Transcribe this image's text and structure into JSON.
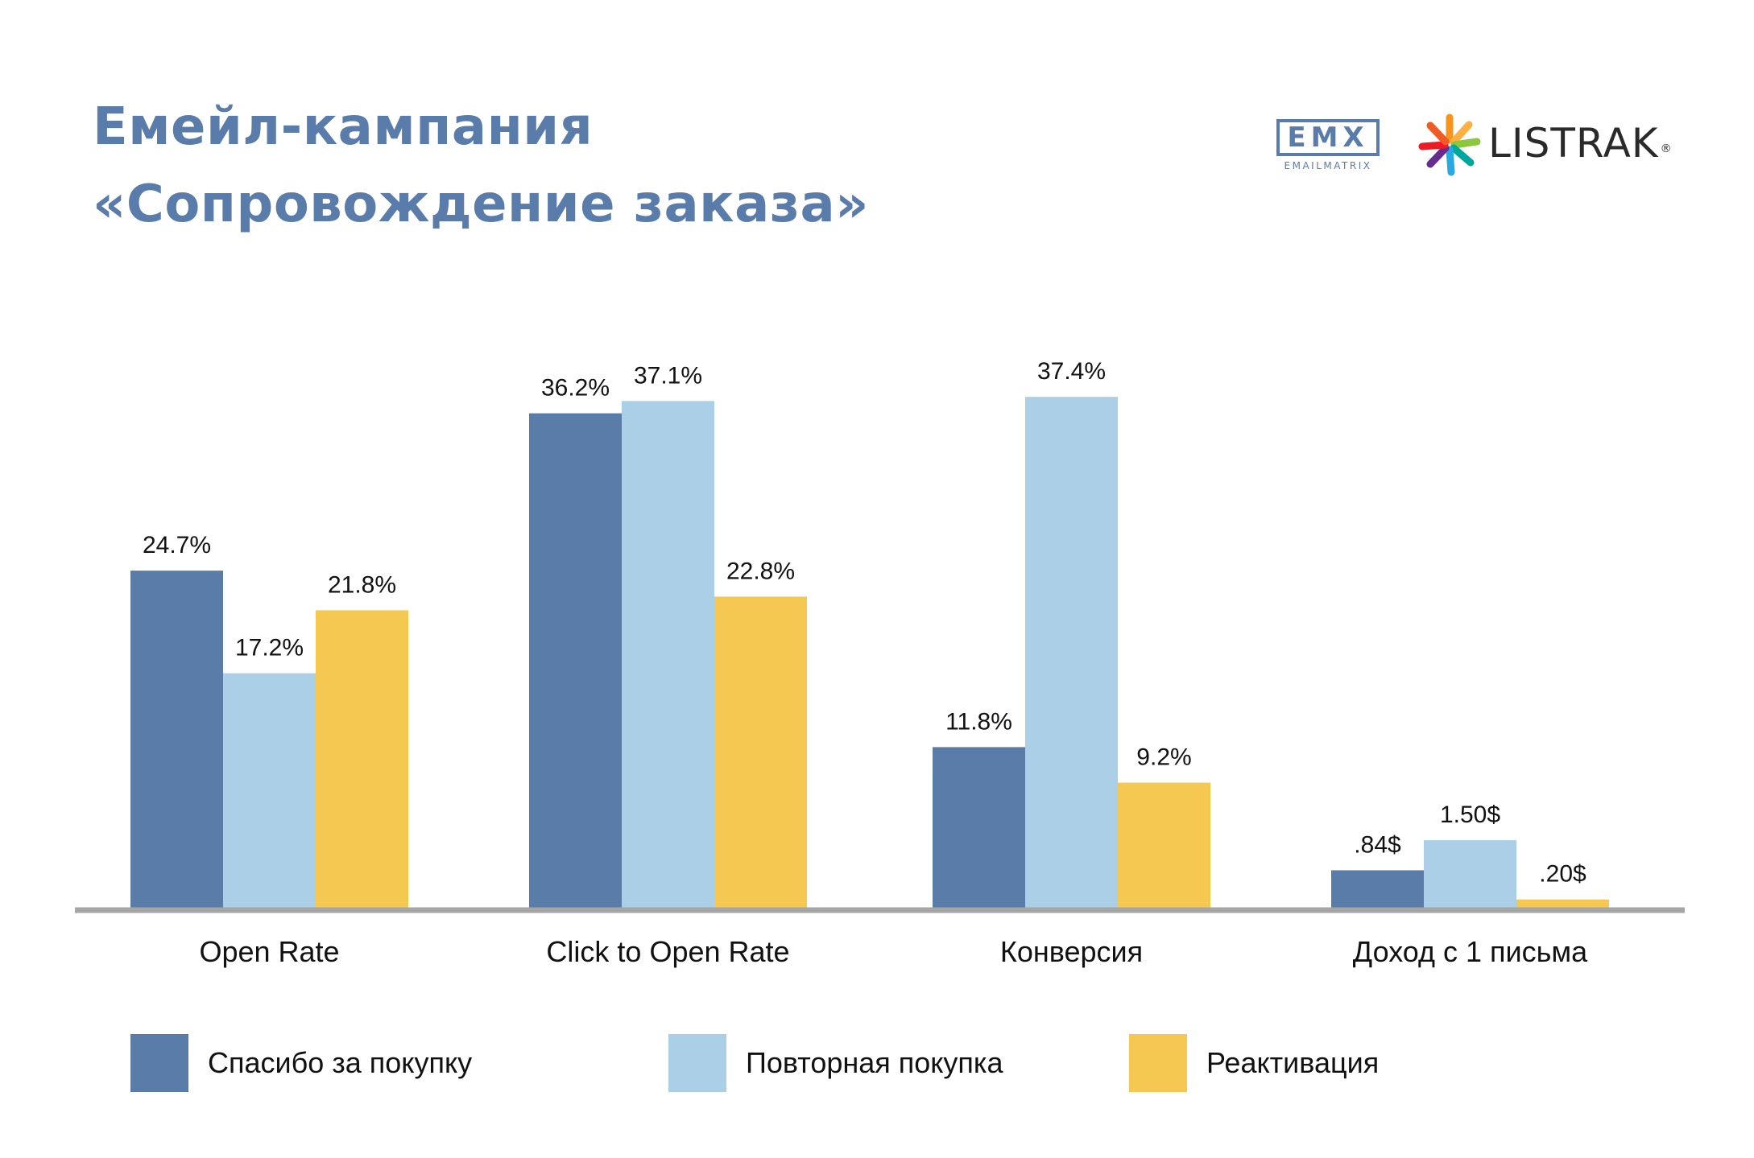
{
  "title": {
    "line1": "Емейл-кампания",
    "line2": "«Сопровождение заказа»"
  },
  "logos": {
    "emx_mark": "EMX",
    "emx_wordmark": "EMAILMATRIX",
    "listrak_wordmark": "LISTRAK",
    "listrak_registered": "®"
  },
  "colors": {
    "title": "#5a7caa",
    "series_1": "#597ca9",
    "series_2": "#aacfe6",
    "series_3": "#f5c852",
    "axis": "#a6a6a6"
  },
  "chart_data": {
    "type": "bar",
    "title": "",
    "xlabel": "",
    "ylabel": "",
    "categories": [
      "Open Rate",
      "Click to Open Rate",
      "Конверсия",
      "Доход с 1 письма"
    ],
    "series": [
      {
        "name": "Спасибо за покупку",
        "color": "#597ca9",
        "values": [
          24.7,
          36.2,
          11.8,
          0.84
        ],
        "labels": [
          "24.7%",
          "36.2%",
          "11.8%",
          ".84$"
        ]
      },
      {
        "name": "Повторная покупка",
        "color": "#aacfe6",
        "values": [
          17.2,
          37.1,
          37.4,
          1.5
        ],
        "labels": [
          "17.2%",
          "37.1%",
          "37.4%",
          "1.50$"
        ]
      },
      {
        "name": "Реактивация",
        "color": "#f5c852",
        "values": [
          21.8,
          22.8,
          9.2,
          0.2
        ],
        "labels": [
          "21.8%",
          "22.8%",
          "9.2%",
          ".20$"
        ]
      }
    ],
    "grid": false,
    "legend_position": "bottom"
  }
}
